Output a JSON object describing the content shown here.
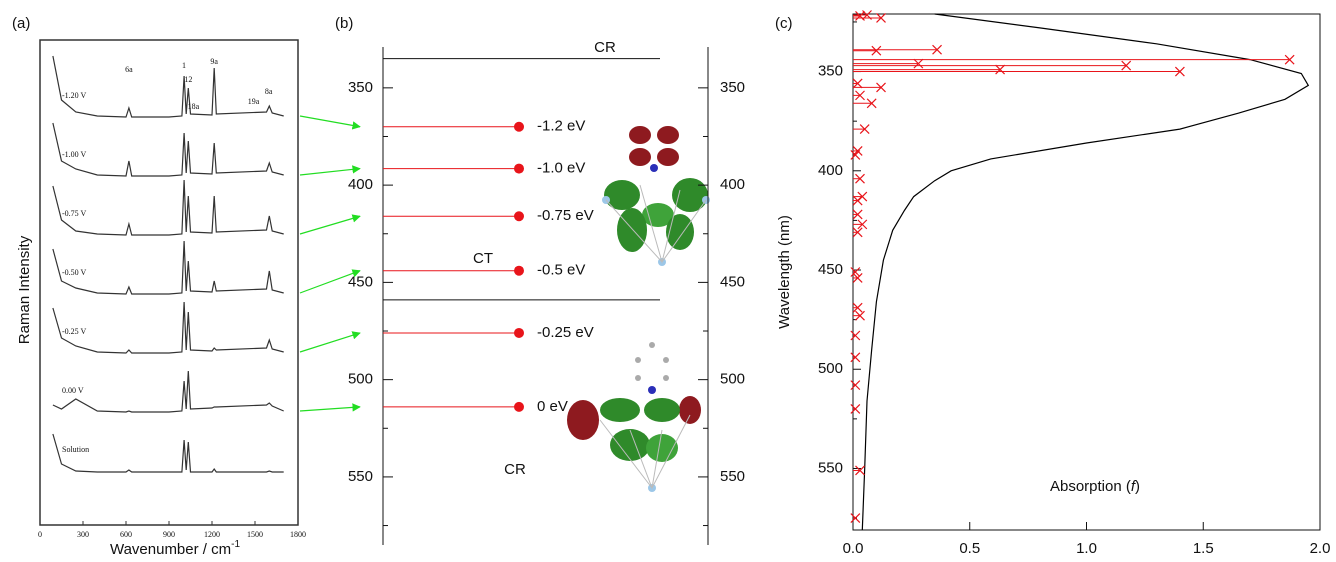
{
  "chart_data": [
    {
      "type": "spectra",
      "title": "(a)",
      "xlabel": "Wavenumber / cm",
      "xlabel_superscript": "-1",
      "ylabel": "Raman Intensity",
      "xlim": [
        0,
        1800
      ],
      "xticks": [
        0,
        300,
        600,
        900,
        1200,
        1500,
        1800
      ],
      "x": [
        90,
        150,
        250,
        400,
        600,
        620,
        640,
        900,
        990,
        1005,
        1020,
        1035,
        1050,
        1200,
        1215,
        1230,
        1580,
        1600,
        1620,
        1700
      ],
      "series": [
        {
          "name": "-1.20 V",
          "color": "#333333",
          "values": [
            3.2,
            1.0,
            0.4,
            0.2,
            0.15,
            0.6,
            0.15,
            0.15,
            0.2,
            2.2,
            0.3,
            1.6,
            0.3,
            0.25,
            2.6,
            0.3,
            0.4,
            0.7,
            0.35,
            0.2
          ]
        },
        {
          "name": "-1.00 V",
          "color": "#333333",
          "values": [
            2.8,
            0.9,
            0.5,
            0.2,
            0.15,
            0.9,
            0.15,
            0.15,
            0.2,
            2.3,
            0.3,
            1.9,
            0.3,
            0.25,
            1.8,
            0.3,
            0.4,
            0.8,
            0.35,
            0.2
          ]
        },
        {
          "name": "-0.75 V",
          "color": "#333333",
          "values": [
            2.6,
            0.9,
            0.35,
            0.2,
            0.15,
            0.7,
            0.15,
            0.15,
            0.2,
            2.9,
            0.3,
            2.1,
            0.3,
            0.25,
            2.1,
            0.3,
            0.4,
            1.1,
            0.35,
            0.2
          ]
        },
        {
          "name": "-0.50 V",
          "color": "#333333",
          "values": [
            2.4,
            0.8,
            0.45,
            0.2,
            0.15,
            0.5,
            0.15,
            0.15,
            0.2,
            2.8,
            0.3,
            1.8,
            0.3,
            0.25,
            0.8,
            0.3,
            0.4,
            1.3,
            0.35,
            0.2
          ]
        },
        {
          "name": "-0.25 V",
          "color": "#333333",
          "values": [
            2.4,
            0.9,
            0.5,
            0.2,
            0.15,
            0.3,
            0.15,
            0.15,
            0.2,
            2.7,
            0.3,
            2.2,
            0.3,
            0.25,
            0.4,
            0.3,
            0.4,
            0.8,
            0.35,
            0.2
          ]
        },
        {
          "name": "0.00 V",
          "color": "#333333",
          "values": [
            0.5,
            0.3,
            0.8,
            0.2,
            0.15,
            0.2,
            0.15,
            0.15,
            0.2,
            1.7,
            0.3,
            2.2,
            0.3,
            0.35,
            0.4,
            0.4,
            0.5,
            0.6,
            0.45,
            0.2
          ]
        },
        {
          "name": "Solution",
          "color": "#333333",
          "values": [
            2.0,
            0.5,
            0.15,
            0.1,
            0.1,
            0.2,
            0.1,
            0.1,
            0.1,
            1.7,
            0.2,
            1.6,
            0.1,
            0.1,
            0.25,
            0.1,
            0.1,
            0.15,
            0.1,
            0.1
          ]
        }
      ],
      "peak_labels": [
        {
          "label": "6a",
          "x": 620
        },
        {
          "label": "1",
          "x": 1005
        },
        {
          "label": "12",
          "x": 1035
        },
        {
          "label": "18a",
          "x": 1070
        },
        {
          "label": "9a",
          "x": 1215
        },
        {
          "label": "19a",
          "x": 1490
        },
        {
          "label": "8a",
          "x": 1595
        }
      ]
    },
    {
      "type": "levels",
      "title": "(b)",
      "ylim": [
        585,
        329
      ],
      "yticks": [
        350,
        400,
        450,
        500,
        550
      ],
      "yminorticks": [
        375,
        425,
        475,
        525,
        575
      ],
      "categories": [
        "-1.2 eV",
        "-1.0 eV",
        "-0.75 eV",
        "-0.5 eV",
        "-0.25 eV",
        "0 eV"
      ],
      "values": [
        370,
        391.5,
        416,
        444,
        476,
        514
      ],
      "color": "#e8141a",
      "boundaries": [
        335,
        459
      ],
      "region_labels": [
        "CR",
        "CT",
        "CR"
      ]
    },
    {
      "type": "stick",
      "title": "(c)",
      "xlabel": [
        "Absorption (",
        "f",
        ")"
      ],
      "ylabel": "Wavelength (nm)",
      "xlim": [
        0,
        2
      ],
      "xticks": [
        {
          "value": 0,
          "label": "0.0"
        },
        0.5,
        {
          "value": 1,
          "label": "1.0"
        },
        1.5,
        {
          "value": 2,
          "label": "2.0"
        }
      ],
      "ylim": [
        581,
        321
      ],
      "yticks": [
        350,
        400,
        450,
        500,
        550
      ],
      "yminorticks": [
        325,
        375,
        425,
        475,
        525,
        575
      ],
      "curve": {
        "color": "#000000",
        "wavelength": [
          321,
          328,
          336,
          344,
          351,
          357,
          364,
          371,
          379,
          386,
          394,
          400,
          405,
          413,
          420,
          430,
          445,
          466,
          490,
          516,
          550,
          581
        ],
        "values": [
          0.35,
          0.8,
          1.3,
          1.7,
          1.92,
          1.95,
          1.85,
          1.65,
          1.4,
          1.0,
          0.59,
          0.42,
          0.35,
          0.26,
          0.22,
          0.17,
          0.13,
          0.1,
          0.08,
          0.06,
          0.05,
          0.04
        ]
      },
      "sticks": {
        "color": "#e8141a",
        "wavelength": [
          322,
          321.5,
          323,
          339,
          339.5,
          344,
          346,
          347,
          349,
          350,
          356,
          358,
          362,
          366,
          379,
          390,
          392,
          404,
          413,
          415,
          422,
          427,
          431,
          451,
          454,
          469,
          473,
          483,
          494,
          508,
          520,
          551,
          575
        ],
        "values": [
          0.03,
          0.06,
          0.12,
          0.36,
          0.1,
          1.87,
          0.28,
          1.17,
          0.63,
          1.4,
          0.02,
          0.12,
          0.03,
          0.08,
          0.05,
          0.02,
          0.01,
          0.03,
          0.04,
          0.02,
          0.02,
          0.04,
          0.02,
          0.01,
          0.02,
          0.02,
          0.03,
          0.01,
          0.01,
          0.01,
          0.01,
          0.03,
          0.01
        ]
      }
    }
  ]
}
